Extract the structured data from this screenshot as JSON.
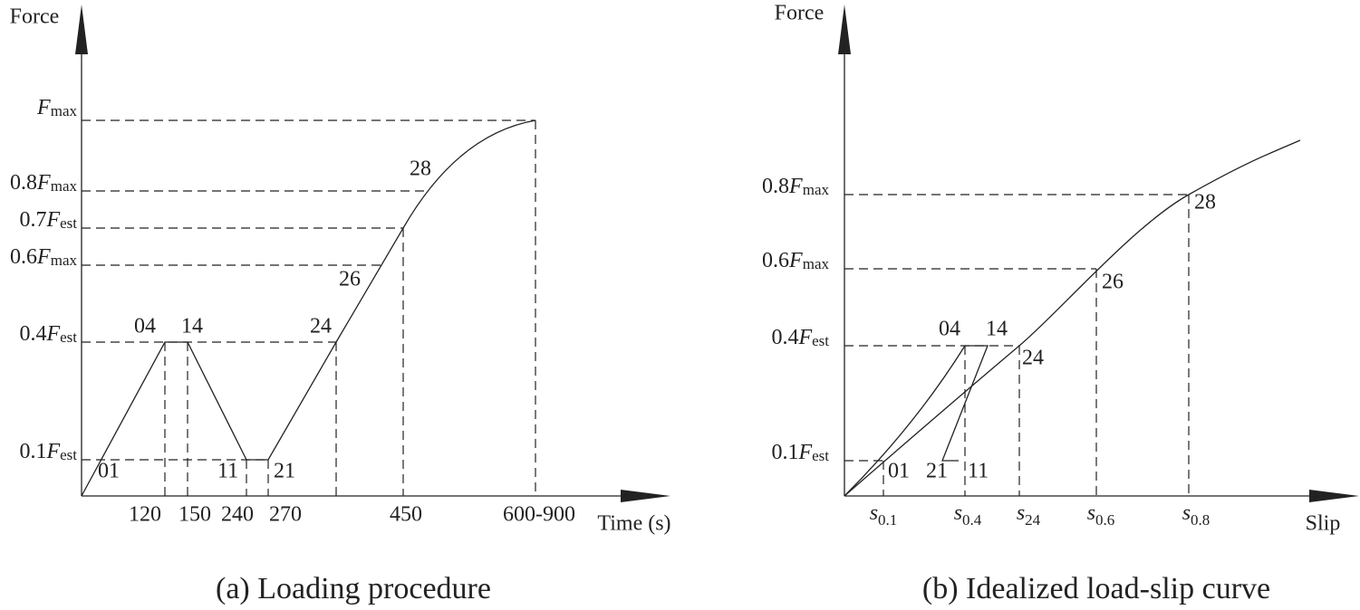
{
  "panels": [
    {
      "y_axis_label": "Force",
      "x_axis_label": "Time (s)",
      "caption": "(a) Loading procedure",
      "y_labels": [
        {
          "var": "F",
          "sub": "max"
        },
        {
          "coef": "0.8",
          "var": "F",
          "sub": "max"
        },
        {
          "coef": "0.7",
          "var": "F",
          "sub": "est"
        },
        {
          "coef": "0.6",
          "var": "F",
          "sub": "max"
        },
        {
          "coef": "0.4",
          "var": "F",
          "sub": "est"
        },
        {
          "coef": "0.1",
          "var": "F",
          "sub": "est"
        }
      ],
      "x_labels": [
        "120",
        "150",
        "240",
        "270",
        "450",
        "600-900"
      ],
      "point_labels": [
        "01",
        "04",
        "14",
        "11",
        "21",
        "24",
        "26",
        "28"
      ]
    },
    {
      "y_axis_label": "Force",
      "x_axis_label": "Slip",
      "caption": "(b) Idealized load-slip curve",
      "y_labels": [
        {
          "coef": "0.8",
          "var": "F",
          "sub": "max"
        },
        {
          "coef": "0.6",
          "var": "F",
          "sub": "max"
        },
        {
          "coef": "0.4",
          "var": "F",
          "sub": "est"
        },
        {
          "coef": "0.1",
          "var": "F",
          "sub": "est"
        }
      ],
      "x_labels": [
        {
          "var": "s",
          "sub": "0.1"
        },
        {
          "var": "s",
          "sub": "0.4"
        },
        {
          "var": "s",
          "sub": "24"
        },
        {
          "var": "s",
          "sub": "0.6"
        },
        {
          "var": "s",
          "sub": "0.8"
        }
      ],
      "point_labels": [
        "04",
        "14",
        "24",
        "26",
        "28",
        "01",
        "21",
        "11"
      ]
    }
  ]
}
